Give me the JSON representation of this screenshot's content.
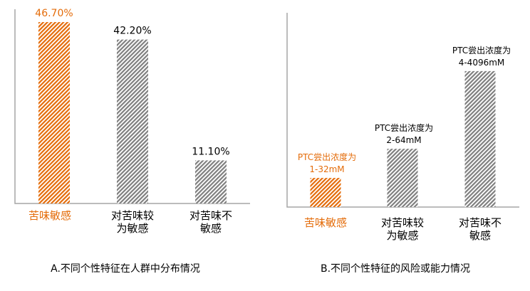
{
  "colors": {
    "highlight": "#E46C0A",
    "neutral": "#7F7F7F",
    "axis": "#A6A6A6",
    "text": "#000000"
  },
  "chart_data": [
    {
      "type": "bar",
      "title": "A.不同个性特征在人群中分布情况",
      "categories": [
        "苦味敏感",
        "对苦味较\n为敏感",
        "对苦味不\n敏感"
      ],
      "values": [
        46.7,
        42.2,
        11.1
      ],
      "data_labels": [
        "46.70%",
        "42.20%",
        "11.10%"
      ],
      "highlight_index": 0,
      "ylim": [
        0,
        50
      ],
      "xlabel": "",
      "ylabel": "",
      "grid": false
    },
    {
      "type": "bar",
      "title": "B.不同个性特征的风险或能力情况",
      "categories": [
        "苦味敏感",
        "对苦味较\n为敏感",
        "对苦味不\n敏感"
      ],
      "values": [
        0.15,
        0.3,
        0.7
      ],
      "data_labels": [
        "PTC尝出浓度为\n1-32mM",
        "PTC尝出浓度为\n2-64mM",
        "PTC尝出浓度为\n4-4096mM"
      ],
      "highlight_index": 0,
      "ylim": [
        0,
        1
      ],
      "xlabel": "",
      "ylabel": "",
      "grid": false
    }
  ]
}
